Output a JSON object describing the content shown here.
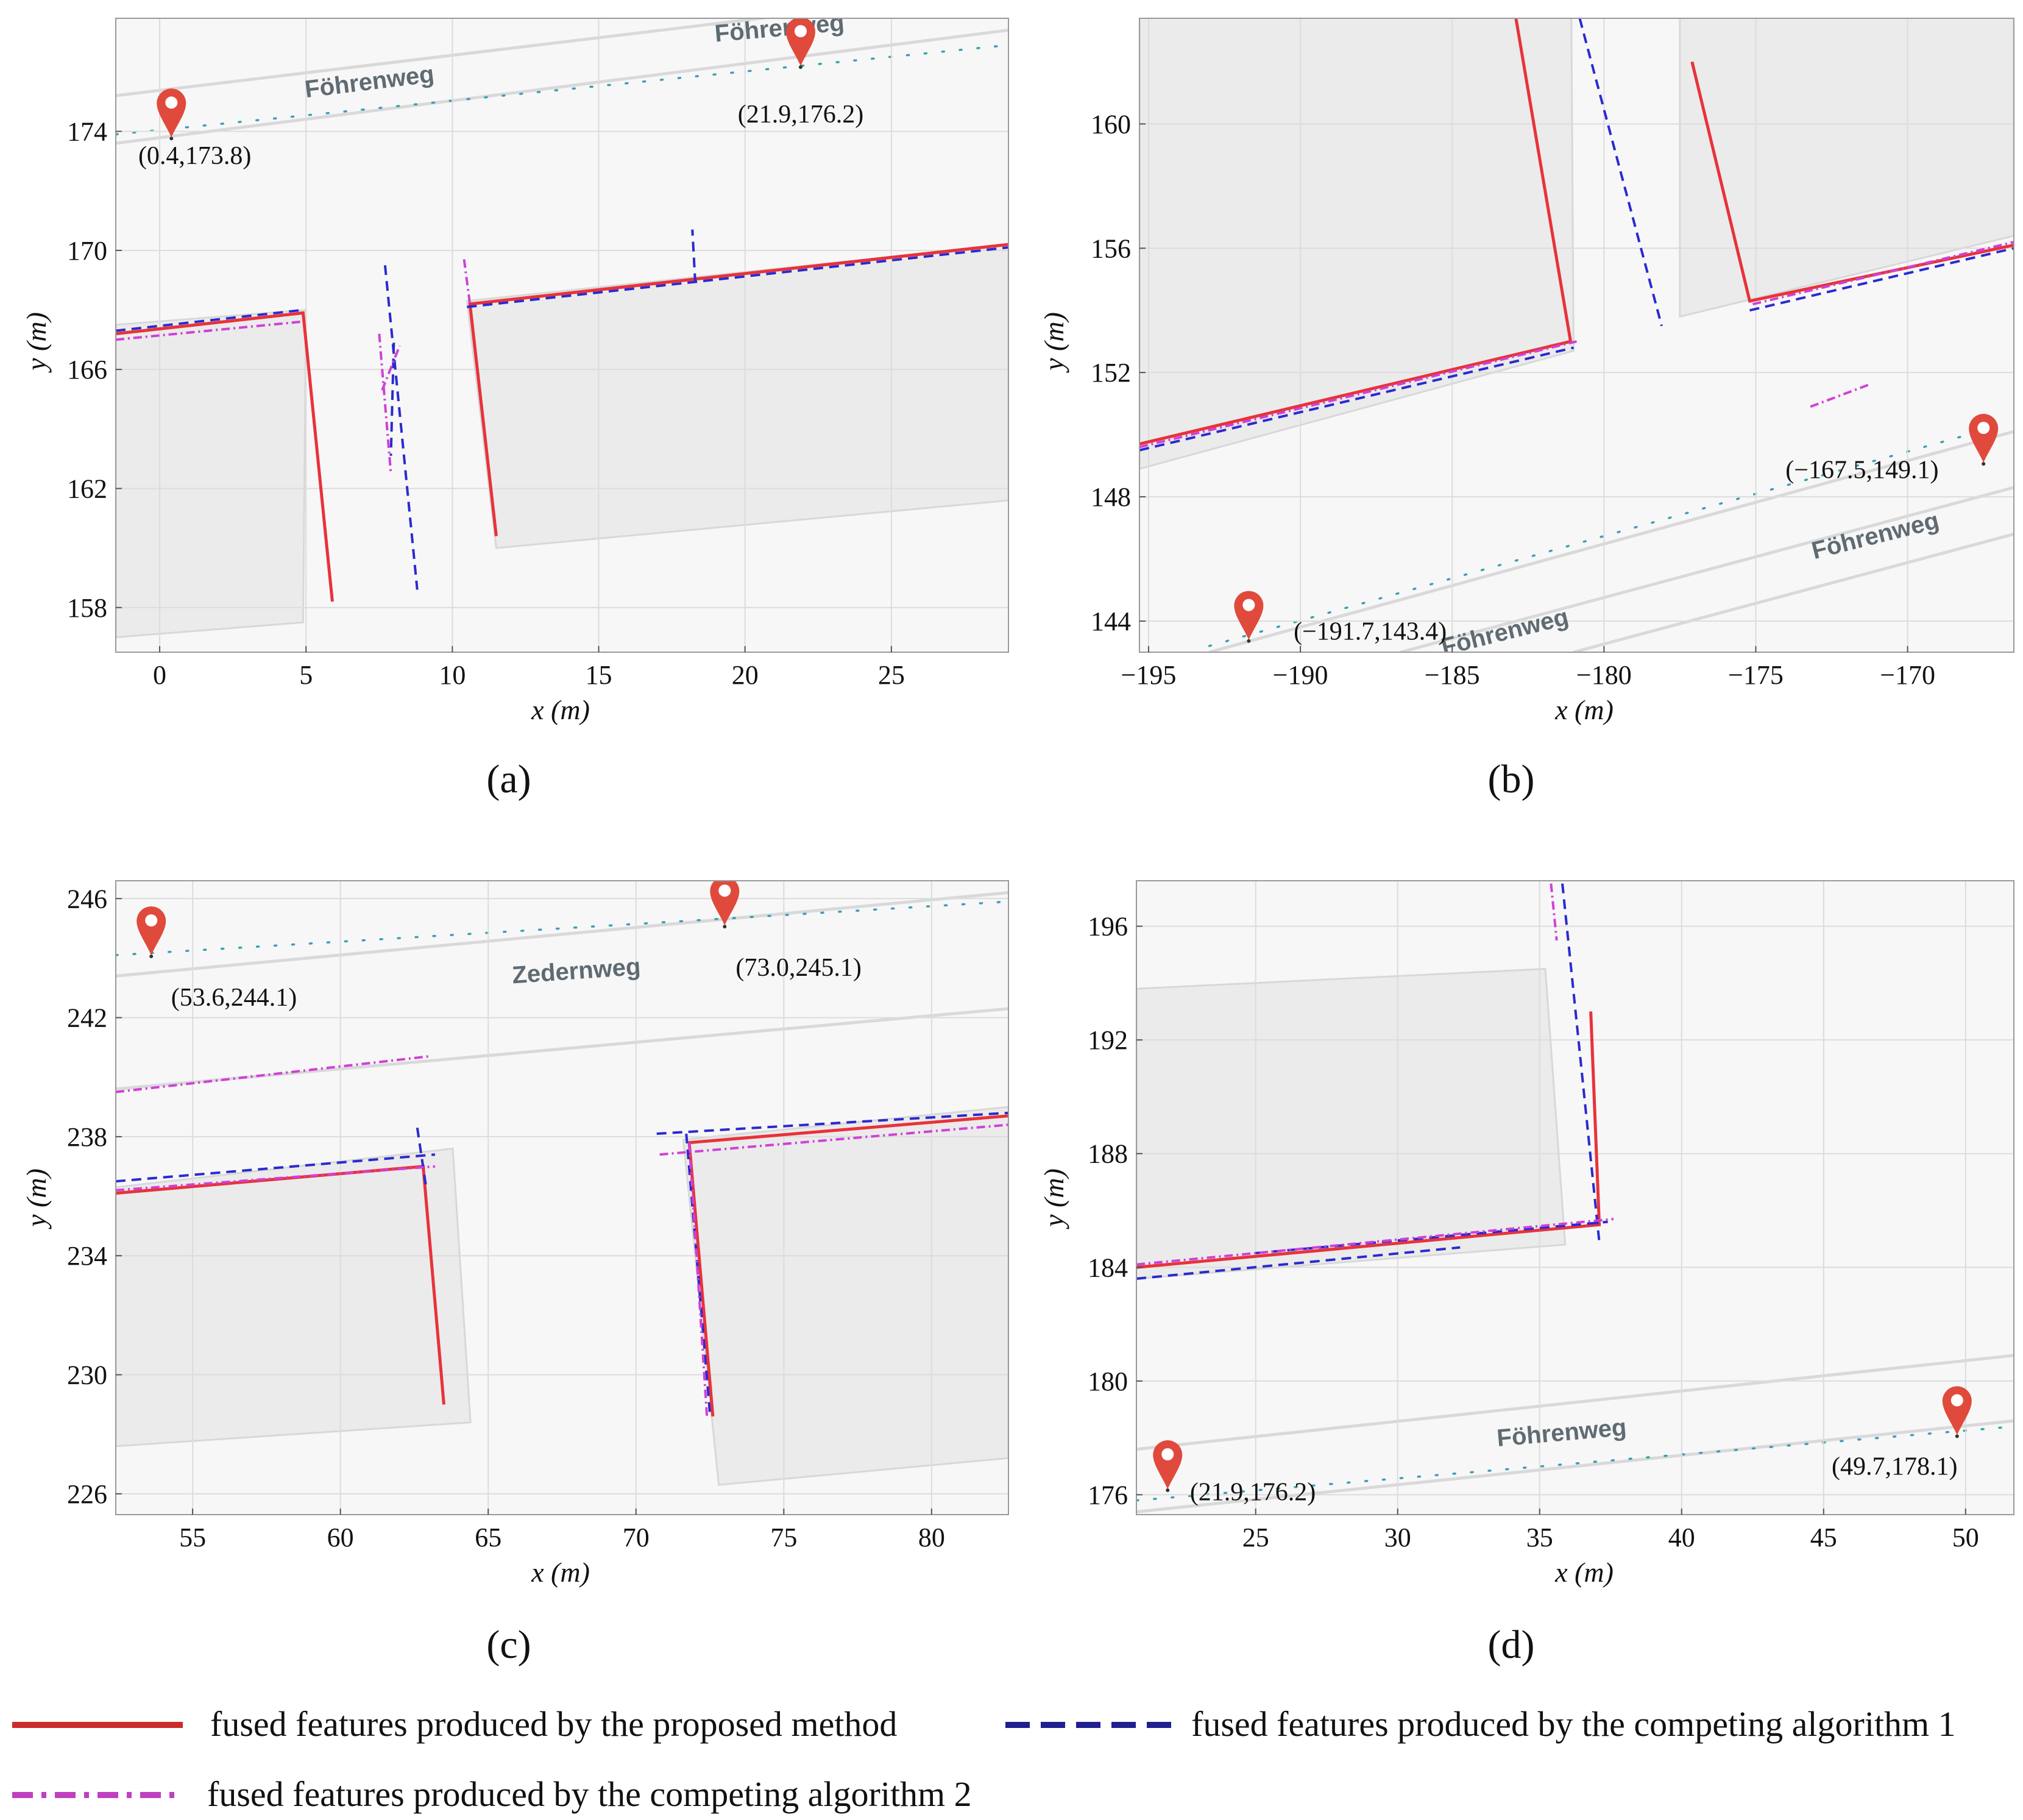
{
  "figure": {
    "legend": [
      {
        "label": "fused features produced by the proposed method",
        "style": "solid",
        "color": "#cc2b2b"
      },
      {
        "label": "fused features produced by the competing algorithm 1",
        "style": "dashed",
        "color": "#1f1f8f"
      },
      {
        "label": "fused features produced by the competing algorithm 2",
        "style": "dashdot",
        "color": "#c040c0"
      }
    ],
    "colors": {
      "proposed": "#e8323a",
      "algorithm1": "#2a2ad0",
      "algorithm2": "#d040d8",
      "marker": "#e04a3c",
      "road_dots": "#3aa0b4"
    }
  },
  "chart_data": [
    {
      "panel": "(a)",
      "type": "scatter",
      "xlabel": "x (m)",
      "ylabel": "y (m)",
      "xlim": [
        -1.5,
        29
      ],
      "ylim": [
        156.5,
        177.8
      ],
      "xticks": [
        0,
        5,
        10,
        15,
        20,
        25
      ],
      "yticks": [
        158,
        162,
        166,
        170,
        174
      ],
      "street_labels": [
        {
          "text": "Föhrenweg",
          "x": 7.2,
          "y": 175.4,
          "angle": -7
        },
        {
          "text": "Föhrenweg",
          "x": 21.2,
          "y": 177.2,
          "angle": -5
        }
      ],
      "road_edges": [
        [
          [
            -1.5,
            173.6
          ],
          [
            29,
            177.4
          ]
        ],
        [
          [
            -1.5,
            175.2
          ],
          [
            29,
            178.8
          ]
        ]
      ],
      "road_dots": [
        [
          -1.5,
          173.9
        ],
        [
          29,
          176.9
        ]
      ],
      "buildings": [
        [
          [
            -1.5,
            167.5
          ],
          [
            5,
            168
          ],
          [
            4.9,
            157.5
          ],
          [
            -1.5,
            157
          ]
        ],
        [
          [
            10.5,
            168.3
          ],
          [
            29,
            170.2
          ],
          [
            29,
            161.6
          ],
          [
            11.5,
            160
          ]
        ]
      ],
      "markers": [
        {
          "x": 0.4,
          "y": 173.8,
          "label": "(0.4,173.8)",
          "label_dx": 0.8,
          "label_dy": -0.9
        },
        {
          "x": 21.9,
          "y": 176.2,
          "label": "(21.9,176.2)",
          "label_dx": 0,
          "label_dy": -1.9
        }
      ],
      "series": [
        {
          "name": "proposed",
          "polylines": [
            [
              [
                -1.5,
                167.2
              ],
              [
                4.9,
                167.9
              ],
              [
                5.9,
                158.2
              ]
            ],
            [
              [
                11.5,
                160.4
              ],
              [
                10.6,
                168.2
              ],
              [
                29,
                170.2
              ]
            ]
          ]
        },
        {
          "name": "algorithm1",
          "polylines": [
            [
              [
                -1.5,
                167.3
              ],
              [
                4.9,
                168
              ]
            ],
            [
              [
                10.5,
                168.1
              ],
              [
                29,
                170.1
              ]
            ],
            [
              [
                18.3,
                168.9
              ],
              [
                18.2,
                170.7
              ]
            ],
            [
              [
                7.7,
                169.5
              ],
              [
                8.8,
                158.6
              ]
            ],
            [
              [
                8.0,
                166.9
              ],
              [
                7.9,
                163.1
              ]
            ]
          ]
        },
        {
          "name": "algorithm2",
          "polylines": [
            [
              [
                -1.5,
                167
              ],
              [
                4.8,
                167.6
              ]
            ],
            [
              [
                10.4,
                169.7
              ],
              [
                10.6,
                168.2
              ]
            ],
            [
              [
                7.5,
                167.2
              ],
              [
                7.9,
                162.5
              ]
            ],
            [
              [
                7.6,
                165.3
              ],
              [
                8.2,
                166.8
              ]
            ]
          ]
        }
      ]
    },
    {
      "panel": "(b)",
      "type": "scatter",
      "xlabel": "x (m)",
      "ylabel": "y (m)",
      "xlim": [
        -195.3,
        -166.5
      ],
      "ylim": [
        143,
        163.4
      ],
      "xticks": [
        -195,
        -190,
        -185,
        -180,
        -175,
        -170
      ],
      "yticks": [
        144,
        148,
        152,
        156,
        160
      ],
      "street_labels": [
        {
          "text": "Föhrenweg",
          "x": -171,
          "y": 146.5,
          "angle": -14
        },
        {
          "text": "Föhrenweg",
          "x": -183.2,
          "y": 143.4,
          "angle": -14
        }
      ],
      "road_edges": [
        [
          [
            -193,
            143
          ],
          [
            -166.5,
            150.1
          ]
        ],
        [
          [
            -186.7,
            143
          ],
          [
            -166.5,
            148.3
          ]
        ],
        [
          [
            -181,
            143
          ],
          [
            -166.5,
            146.8
          ]
        ]
      ],
      "road_dots": [
        [
          -193,
          143.2
        ],
        [
          -168,
          150
        ]
      ],
      "buildings": [
        [
          [
            -195.3,
            165
          ],
          [
            -181.1,
            167
          ],
          [
            -181,
            152.7
          ],
          [
            -195.3,
            148.9
          ]
        ],
        [
          [
            -177.5,
            165
          ],
          [
            -166.5,
            167
          ],
          [
            -166.5,
            156.4
          ],
          [
            -177.5,
            153.8
          ]
        ]
      ],
      "markers": [
        {
          "x": -191.7,
          "y": 143.4,
          "label": "(−191.7,143.4)",
          "label_dx": 4,
          "label_dy": 0
        },
        {
          "x": -167.5,
          "y": 149.1,
          "label": "(−167.5,149.1)",
          "label_dx": -4,
          "label_dy": -0.5
        }
      ],
      "series": [
        {
          "name": "proposed",
          "polylines": [
            [
              [
                -195.3,
                149.7
              ],
              [
                -181.1,
                153
              ],
              [
                -182.9,
                163.4
              ]
            ],
            [
              [
                -177.1,
                162
              ],
              [
                -175.2,
                154.3
              ],
              [
                -166.5,
                156.1
              ]
            ]
          ]
        },
        {
          "name": "algorithm1",
          "polylines": [
            [
              [
                -195.3,
                149.5
              ],
              [
                -181,
                152.8
              ]
            ],
            [
              [
                -180.8,
                163.4
              ],
              [
                -178.1,
                153.5
              ]
            ],
            [
              [
                -175.2,
                154
              ],
              [
                -166.5,
                156
              ]
            ]
          ]
        },
        {
          "name": "algorithm2",
          "polylines": [
            [
              [
                -195.3,
                149.6
              ],
              [
                -180.9,
                153.0
              ]
            ],
            [
              [
                -175.1,
                154.2
              ],
              [
                -166.5,
                156.2
              ]
            ],
            [
              [
                -173.2,
                150.9
              ],
              [
                -171.3,
                151.6
              ]
            ]
          ]
        }
      ]
    },
    {
      "panel": "(c)",
      "type": "scatter",
      "xlabel": "x (m)",
      "ylabel": "y (m)",
      "xlim": [
        52.4,
        82.6
      ],
      "ylim": [
        225.3,
        246.6
      ],
      "xticks": [
        55,
        60,
        65,
        70,
        75,
        80
      ],
      "yticks": [
        226,
        230,
        234,
        238,
        242,
        246
      ],
      "street_labels": [
        {
          "text": "Zedernweg",
          "x": 68,
          "y": 243.3,
          "angle": -4
        }
      ],
      "road_edges": [
        [
          [
            52.4,
            239.6
          ],
          [
            82.6,
            242.3
          ]
        ],
        [
          [
            52.4,
            243.4
          ],
          [
            82.6,
            246.2
          ]
        ]
      ],
      "road_dots": [
        [
          52.4,
          244.1
        ],
        [
          82.6,
          245.9
        ]
      ],
      "buildings": [
        [
          [
            52.4,
            236.3
          ],
          [
            63.8,
            237.6
          ],
          [
            64.4,
            228.4
          ],
          [
            52.4,
            227.6
          ]
        ],
        [
          [
            71.6,
            237.9
          ],
          [
            82.6,
            239
          ],
          [
            82.6,
            227.2
          ],
          [
            72.8,
            226.3
          ]
        ]
      ],
      "markers": [
        {
          "x": 53.6,
          "y": 244.1,
          "label": "(53.6,244.1)",
          "label_dx": 2.8,
          "label_dy": -1.7
        },
        {
          "x": 73,
          "y": 245.1,
          "label": "(73.0,245.1)",
          "label_dx": 2.5,
          "label_dy": -1.7
        }
      ],
      "series": [
        {
          "name": "proposed",
          "polylines": [
            [
              [
                52.4,
                236.1
              ],
              [
                62.8,
                237
              ],
              [
                63.5,
                229
              ]
            ],
            [
              [
                72.6,
                228.6
              ],
              [
                71.8,
                237.8
              ],
              [
                82.6,
                238.7
              ]
            ]
          ]
        },
        {
          "name": "algorithm1",
          "polylines": [
            [
              [
                52.4,
                236.5
              ],
              [
                63.2,
                237.4
              ]
            ],
            [
              [
                62.6,
                238.3
              ],
              [
                62.9,
                236.3
              ]
            ],
            [
              [
                70.7,
                238.1
              ],
              [
                82.6,
                238.8
              ]
            ],
            [
              [
                71.7,
                238.1
              ],
              [
                72.5,
                228.7
              ]
            ]
          ]
        },
        {
          "name": "algorithm2",
          "polylines": [
            [
              [
                52.4,
                239.5
              ],
              [
                63,
                240.7
              ]
            ],
            [
              [
                52.4,
                236.2
              ],
              [
                63.2,
                237
              ]
            ],
            [
              [
                70.8,
                237.4
              ],
              [
                82.6,
                238.4
              ]
            ],
            [
              [
                71.8,
                237.8
              ],
              [
                72.4,
                228.6
              ]
            ]
          ]
        }
      ]
    },
    {
      "panel": "(d)",
      "type": "scatter",
      "xlabel": "x (m)",
      "ylabel": "y (m)",
      "xlim": [
        20.8,
        51.7
      ],
      "ylim": [
        175.3,
        197.6
      ],
      "xticks": [
        25,
        30,
        35,
        40,
        45,
        50
      ],
      "yticks": [
        176,
        180,
        184,
        188,
        192,
        196
      ],
      "street_labels": [
        {
          "text": "Föhrenweg",
          "x": 35.8,
          "y": 177.9,
          "angle": -5
        }
      ],
      "road_edges": [
        [
          [
            20.8,
            177.6
          ],
          [
            51.7,
            180.9
          ]
        ],
        [
          [
            20.8,
            175.4
          ],
          [
            51.7,
            178.6
          ]
        ]
      ],
      "road_dots": [
        [
          20.8,
          175.8
        ],
        [
          51.7,
          178.4
        ]
      ],
      "buildings": [
        [
          [
            20.8,
            193.8
          ],
          [
            35.2,
            194.5
          ],
          [
            35.9,
            184.8
          ],
          [
            20.8,
            183.6
          ]
        ]
      ],
      "markers": [
        {
          "x": 21.9,
          "y": 176.2,
          "label": "(21.9,176.2)",
          "label_dx": 3,
          "label_dy": -0.4
        },
        {
          "x": 49.7,
          "y": 178.1,
          "label": "(49.7,178.1)",
          "label_dx": -2.2,
          "label_dy": -1.4
        }
      ],
      "series": [
        {
          "name": "proposed",
          "polylines": [
            [
              [
                20.8,
                184
              ],
              [
                37.1,
                185.5
              ],
              [
                36.8,
                193
              ]
            ]
          ]
        },
        {
          "name": "algorithm1",
          "polylines": [
            [
              [
                20.8,
                183.6
              ],
              [
                32.2,
                184.7
              ]
            ],
            [
              [
                35.8,
                197.5
              ],
              [
                37.1,
                184.9
              ]
            ],
            [
              [
                25,
                184.5
              ],
              [
                37.4,
                185.6
              ]
            ]
          ]
        },
        {
          "name": "algorithm2",
          "polylines": [
            [
              [
                20.8,
                184.1
              ],
              [
                37.6,
                185.7
              ]
            ],
            [
              [
                35.4,
                197.5
              ],
              [
                35.6,
                195.5
              ]
            ]
          ]
        }
      ]
    }
  ]
}
